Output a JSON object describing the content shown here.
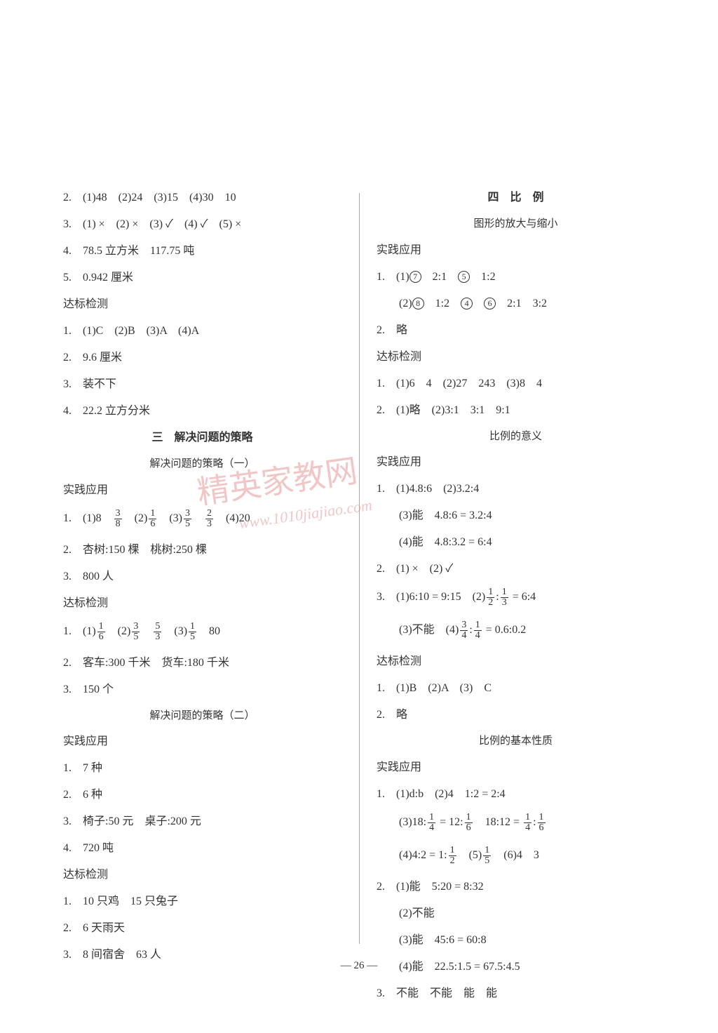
{
  "pageNumber": "— 26 —",
  "watermark": {
    "text": "精英家教网",
    "url": "www.1010jiajiao.com"
  },
  "left": {
    "l1": "2.　(1)48　(2)24　(3)15　(4)30　10",
    "l2": "3.　(1) ×　(2) ×　(3) ✓　(4) ✓　(5) ×",
    "l3": "4.　78.5 立方米　117.75 吨",
    "l4": "5.　0.942 厘米",
    "h1": "达标检测",
    "l5": "1.　(1)C　(2)B　(3)A　(4)A",
    "l6": "2.　9.6 厘米",
    "l7": "3.　装不下",
    "l8": "4.　22.2 立方分米",
    "sec3": "三　解决问题的策略",
    "sub3a": "解决问题的策略（一）",
    "h2": "实践应用",
    "q1": {
      "pre": "1.　(1)8　",
      "f1n": "3",
      "f1d": "8",
      "mid1": "　(2)",
      "f2n": "1",
      "f2d": "6",
      "mid2": "　(3)",
      "f3n": "3",
      "f3d": "5",
      "mid3": "　",
      "f4n": "2",
      "f4d": "3",
      "mid4": "　(4)20"
    },
    "l9": "2.　杏树:150 棵　桃树:250 棵",
    "l10": "3.　800 人",
    "h3": "达标检测",
    "q2": {
      "pre": "1.　(1)",
      "f1n": "1",
      "f1d": "6",
      "mid1": "　(2)",
      "f2n": "3",
      "f2d": "5",
      "mid2": "　",
      "f3n": "5",
      "f3d": "3",
      "mid3": "　(3)",
      "f4n": "1",
      "f4d": "5",
      "mid4": "　80"
    },
    "l11": "2.　客车:300 千米　货车:180 千米",
    "l12": "3.　150 个",
    "sub3b": "解决问题的策略（二）",
    "h4": "实践应用",
    "l13": "1.　7 种",
    "l14": "2.　6 种",
    "l15": "3.　椅子:50 元　桌子:200 元",
    "l16": "4.　720 吨",
    "h5": "达标检测",
    "l17": "1.　10 只鸡　15 只兔子",
    "l18": "2.　6 天雨天",
    "l19": "3.　8 间宿舍　63 人"
  },
  "right": {
    "sec4": "四　比　例",
    "sub4a": "图形的放大与缩小",
    "h1": "实践应用",
    "r1": {
      "pre": "1.　(1)",
      "c1": "7",
      "mid1": "　2:1　",
      "c2": "5",
      "mid2": "　1:2"
    },
    "r2": {
      "pre": "　　(2)",
      "c1": "8",
      "mid1": "　1:2　",
      "c2": "4",
      "mid2": "　",
      "c3": "6",
      "mid3": "　2:1　3:2"
    },
    "l1": "2.　略",
    "h2": "达标检测",
    "l2": "1.　(1)6　4　(2)27　243　(3)8　4",
    "l3": "2.　(1)略　(2)3:1　3:1　9:1",
    "sub4b": "比例的意义",
    "h3": "实践应用",
    "l4": "1.　(1)4.8:6　(2)3.2:4",
    "l5": "　　(3)能　4.8:6 = 3.2:4",
    "l6": "　　(4)能　4.8:3.2 = 6:4",
    "l7": "2.　(1) ×　(2) ✓",
    "q3": {
      "pre": "3.　(1)6:10 = 9:15　(2)",
      "f1n": "1",
      "f1d": "2",
      "mid1": ":",
      "f2n": "1",
      "f2d": "3",
      "mid2": " = 6:4"
    },
    "q4": {
      "pre": "　　(3)不能　(4)",
      "f1n": "3",
      "f1d": "4",
      "mid1": ":",
      "f2n": "1",
      "f2d": "4",
      "mid2": " = 0.6:0.2"
    },
    "h4": "达标检测",
    "l8": "1.　(1)B　(2)A　(3)　C",
    "l9": "2.　略",
    "sub4c": "比例的基本性质",
    "h5": "实践应用",
    "l10": "1.　(1)d:b　(2)4　1:2 = 2:4",
    "q5": {
      "pre": "　　(3)18:",
      "f1n": "1",
      "f1d": "4",
      "mid1": " = 12:",
      "f2n": "1",
      "f2d": "6",
      "mid2": "　18:12 = ",
      "f3n": "1",
      "f3d": "4",
      "mid3": ":",
      "f4n": "1",
      "f4d": "6"
    },
    "q6": {
      "pre": "　　(4)4:2 = 1:",
      "f1n": "1",
      "f1d": "2",
      "mid1": "　(5)",
      "f2n": "1",
      "f2d": "5",
      "mid2": "　(6)4　3"
    },
    "l11": "2.　(1)能　5:20 = 8:32",
    "l12": "　　(2)不能",
    "l13": "　　(3)能　45:6 = 60:8",
    "l14": "　　(4)能　22.5:1.5 = 67.5:4.5",
    "l15": "3.　不能　不能　能　能"
  }
}
